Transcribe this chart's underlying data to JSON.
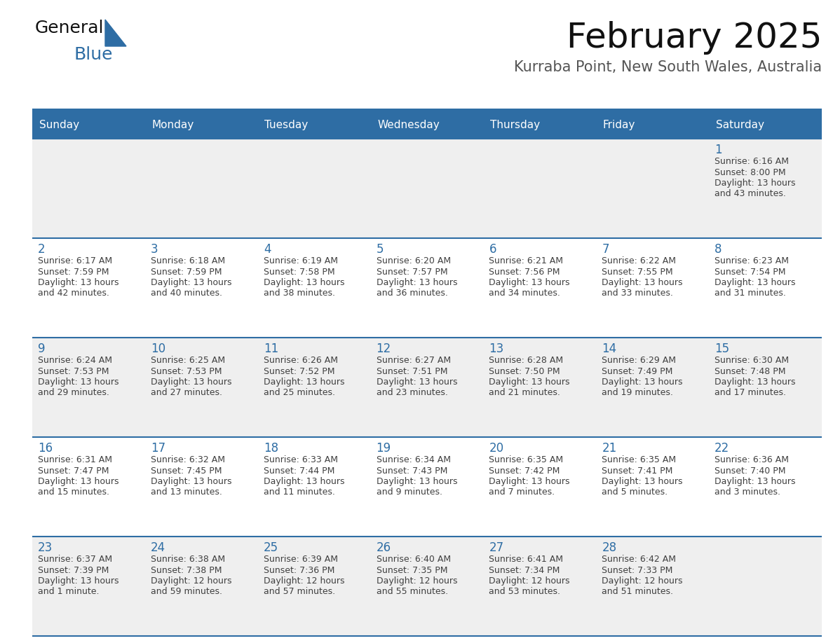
{
  "title": "February 2025",
  "subtitle": "Kurraba Point, New South Wales, Australia",
  "days_of_week": [
    "Sunday",
    "Monday",
    "Tuesday",
    "Wednesday",
    "Thursday",
    "Friday",
    "Saturday"
  ],
  "header_bg": "#2E6DA4",
  "header_text": "#FFFFFF",
  "cell_bg_odd": "#EFEFEF",
  "cell_bg_even": "#FFFFFF",
  "separator_color": "#2E6DA4",
  "day_num_color": "#2E6DA4",
  "info_text_color": "#404040",
  "title_color": "#111111",
  "subtitle_color": "#555555",
  "logo_general_color": "#111111",
  "logo_blue_color": "#2E6DA4",
  "calendar": [
    [
      null,
      null,
      null,
      null,
      null,
      null,
      {
        "day": 1,
        "sunrise": "6:16 AM",
        "sunset": "8:00 PM",
        "daylight": "13 hours and 43 minutes."
      }
    ],
    [
      {
        "day": 2,
        "sunrise": "6:17 AM",
        "sunset": "7:59 PM",
        "daylight": "13 hours and 42 minutes."
      },
      {
        "day": 3,
        "sunrise": "6:18 AM",
        "sunset": "7:59 PM",
        "daylight": "13 hours and 40 minutes."
      },
      {
        "day": 4,
        "sunrise": "6:19 AM",
        "sunset": "7:58 PM",
        "daylight": "13 hours and 38 minutes."
      },
      {
        "day": 5,
        "sunrise": "6:20 AM",
        "sunset": "7:57 PM",
        "daylight": "13 hours and 36 minutes."
      },
      {
        "day": 6,
        "sunrise": "6:21 AM",
        "sunset": "7:56 PM",
        "daylight": "13 hours and 34 minutes."
      },
      {
        "day": 7,
        "sunrise": "6:22 AM",
        "sunset": "7:55 PM",
        "daylight": "13 hours and 33 minutes."
      },
      {
        "day": 8,
        "sunrise": "6:23 AM",
        "sunset": "7:54 PM",
        "daylight": "13 hours and 31 minutes."
      }
    ],
    [
      {
        "day": 9,
        "sunrise": "6:24 AM",
        "sunset": "7:53 PM",
        "daylight": "13 hours and 29 minutes."
      },
      {
        "day": 10,
        "sunrise": "6:25 AM",
        "sunset": "7:53 PM",
        "daylight": "13 hours and 27 minutes."
      },
      {
        "day": 11,
        "sunrise": "6:26 AM",
        "sunset": "7:52 PM",
        "daylight": "13 hours and 25 minutes."
      },
      {
        "day": 12,
        "sunrise": "6:27 AM",
        "sunset": "7:51 PM",
        "daylight": "13 hours and 23 minutes."
      },
      {
        "day": 13,
        "sunrise": "6:28 AM",
        "sunset": "7:50 PM",
        "daylight": "13 hours and 21 minutes."
      },
      {
        "day": 14,
        "sunrise": "6:29 AM",
        "sunset": "7:49 PM",
        "daylight": "13 hours and 19 minutes."
      },
      {
        "day": 15,
        "sunrise": "6:30 AM",
        "sunset": "7:48 PM",
        "daylight": "13 hours and 17 minutes."
      }
    ],
    [
      {
        "day": 16,
        "sunrise": "6:31 AM",
        "sunset": "7:47 PM",
        "daylight": "13 hours and 15 minutes."
      },
      {
        "day": 17,
        "sunrise": "6:32 AM",
        "sunset": "7:45 PM",
        "daylight": "13 hours and 13 minutes."
      },
      {
        "day": 18,
        "sunrise": "6:33 AM",
        "sunset": "7:44 PM",
        "daylight": "13 hours and 11 minutes."
      },
      {
        "day": 19,
        "sunrise": "6:34 AM",
        "sunset": "7:43 PM",
        "daylight": "13 hours and 9 minutes."
      },
      {
        "day": 20,
        "sunrise": "6:35 AM",
        "sunset": "7:42 PM",
        "daylight": "13 hours and 7 minutes."
      },
      {
        "day": 21,
        "sunrise": "6:35 AM",
        "sunset": "7:41 PM",
        "daylight": "13 hours and 5 minutes."
      },
      {
        "day": 22,
        "sunrise": "6:36 AM",
        "sunset": "7:40 PM",
        "daylight": "13 hours and 3 minutes."
      }
    ],
    [
      {
        "day": 23,
        "sunrise": "6:37 AM",
        "sunset": "7:39 PM",
        "daylight": "13 hours and 1 minute."
      },
      {
        "day": 24,
        "sunrise": "6:38 AM",
        "sunset": "7:38 PM",
        "daylight": "12 hours and 59 minutes."
      },
      {
        "day": 25,
        "sunrise": "6:39 AM",
        "sunset": "7:36 PM",
        "daylight": "12 hours and 57 minutes."
      },
      {
        "day": 26,
        "sunrise": "6:40 AM",
        "sunset": "7:35 PM",
        "daylight": "12 hours and 55 minutes."
      },
      {
        "day": 27,
        "sunrise": "6:41 AM",
        "sunset": "7:34 PM",
        "daylight": "12 hours and 53 minutes."
      },
      {
        "day": 28,
        "sunrise": "6:42 AM",
        "sunset": "7:33 PM",
        "daylight": "12 hours and 51 minutes."
      },
      null
    ]
  ]
}
